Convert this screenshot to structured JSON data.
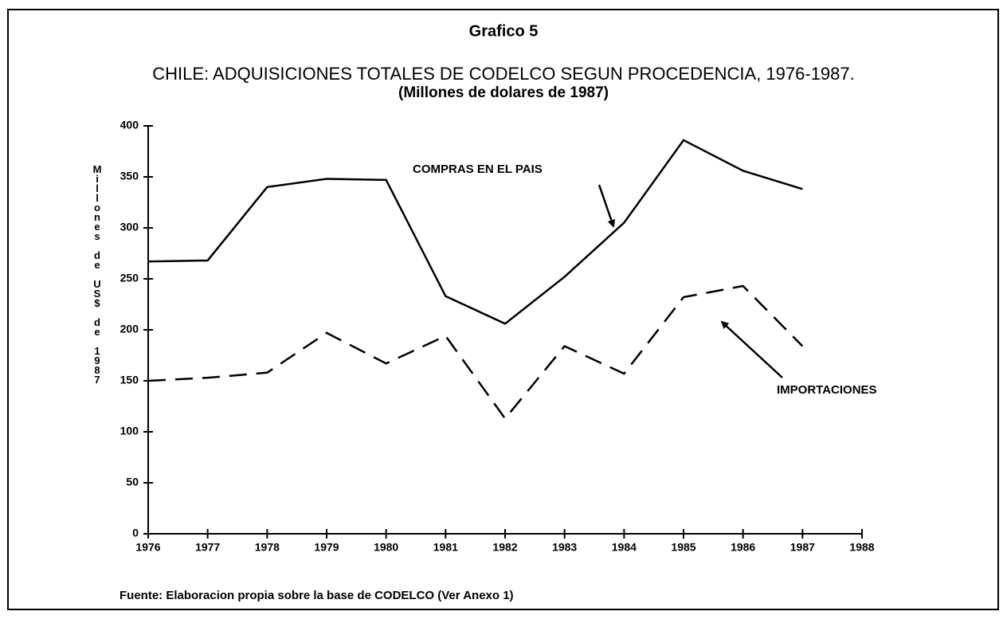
{
  "chart_data": {
    "type": "line",
    "header": "Grafico 5",
    "title": "CHILE: ADQUISICIONES TOTALES DE CODELCO SEGUN PROCEDENCIA, 1976-1987.",
    "subtitle": "(Millones de dolares de 1987)",
    "y_label": "Millones de US$ de 1987",
    "source": "Fuente: Elaboracion propia sobre la base de CODELCO (Ver Anexo 1)",
    "x": [
      1976,
      1977,
      1978,
      1979,
      1980,
      1981,
      1982,
      1983,
      1984,
      1985,
      1986,
      1987
    ],
    "series": [
      {
        "name": "COMPRAS EN EL PAIS",
        "color": "#000000",
        "line_style": "solid",
        "values": [
          267,
          268,
          340,
          348,
          347,
          233,
          206,
          252,
          305,
          386,
          356,
          338
        ]
      },
      {
        "name": "IMPORTACIONES",
        "color": "#000000",
        "line_style": "dashed",
        "values": [
          150,
          153,
          158,
          197,
          167,
          194,
          113,
          184,
          157,
          232,
          243,
          184
        ]
      }
    ],
    "xlim": [
      1976,
      1988
    ],
    "xticks": [
      1976,
      1977,
      1978,
      1979,
      1980,
      1981,
      1982,
      1983,
      1984,
      1985,
      1986,
      1987,
      1988
    ],
    "ylim": [
      0,
      400
    ],
    "yticks": [
      0,
      50,
      100,
      150,
      200,
      250,
      300,
      350,
      400
    ],
    "grid": false
  }
}
